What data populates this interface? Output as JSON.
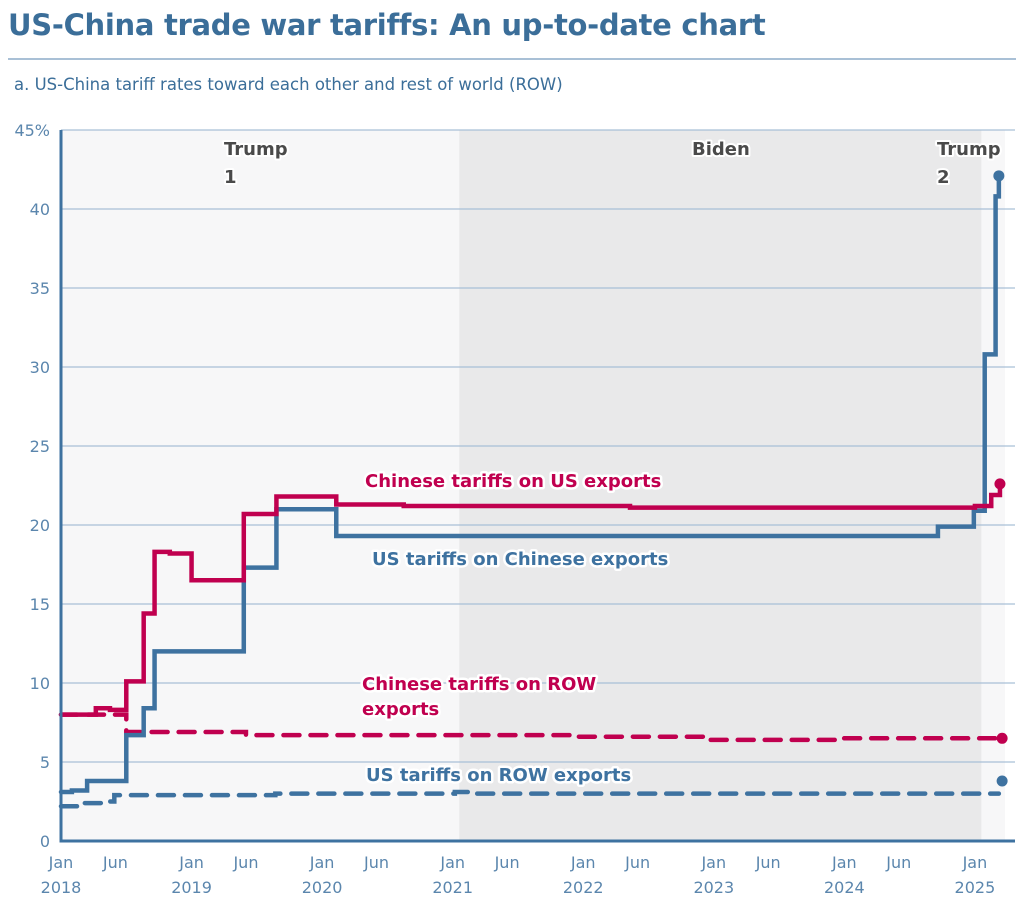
{
  "header": {
    "title": "US-China trade war tariffs: An up-to-date chart",
    "subtitle": "a. US-China tariff rates toward each other and rest of world (ROW)"
  },
  "colors": {
    "us": "#3e72a0",
    "china": "#c0004f",
    "grid": "#a9c0d6",
    "axis": "#3e72a0",
    "shade_light": "#f7f7f8",
    "shade_dark": "#e9e9ea",
    "tick": "#5b86ad",
    "era": "#4a4a4a"
  },
  "chart_data": {
    "type": "line",
    "title": "US-China trade war tariffs: An up-to-date chart",
    "subtitle": "a. US-China tariff rates toward each other and rest of world (ROW)",
    "xlabel": "",
    "ylabel": "",
    "x_unit": "months since Jan 2018",
    "xlim": [
      0,
      88
    ],
    "ylim": [
      0,
      45
    ],
    "grid": true,
    "legend": "inline labels",
    "y_ticks": [
      {
        "value": 0,
        "label": "0"
      },
      {
        "value": 5,
        "label": "5"
      },
      {
        "value": 10,
        "label": "10"
      },
      {
        "value": 15,
        "label": "15"
      },
      {
        "value": 20,
        "label": "20"
      },
      {
        "value": 25,
        "label": "25"
      },
      {
        "value": 30,
        "label": "30"
      },
      {
        "value": 35,
        "label": "35"
      },
      {
        "value": 40,
        "label": "40"
      },
      {
        "value": 45,
        "label": "45%"
      }
    ],
    "x_ticks": [
      {
        "value": 0,
        "label": "Jan",
        "year": "2018"
      },
      {
        "value": 5,
        "label": "Jun",
        "year": ""
      },
      {
        "value": 12,
        "label": "Jan",
        "year": "2019"
      },
      {
        "value": 17,
        "label": "Jun",
        "year": ""
      },
      {
        "value": 24,
        "label": "Jan",
        "year": "2020"
      },
      {
        "value": 29,
        "label": "Jun",
        "year": ""
      },
      {
        "value": 36,
        "label": "Jan",
        "year": "2021"
      },
      {
        "value": 41,
        "label": "Jun",
        "year": ""
      },
      {
        "value": 48,
        "label": "Jan",
        "year": "2022"
      },
      {
        "value": 53,
        "label": "Jun",
        "year": ""
      },
      {
        "value": 60,
        "label": "Jan",
        "year": "2023"
      },
      {
        "value": 65,
        "label": "Jun",
        "year": ""
      },
      {
        "value": 72,
        "label": "Jan",
        "year": "2024"
      },
      {
        "value": 77,
        "label": "Jun",
        "year": ""
      },
      {
        "value": 84,
        "label": "Jan",
        "year": "2025"
      }
    ],
    "eras": [
      {
        "name": "Trump 1",
        "line1": "Trump",
        "line2": "1",
        "start": 0,
        "end": 36.6,
        "shade": "light"
      },
      {
        "name": "Biden",
        "line1": "Biden",
        "line2": "",
        "start": 36.6,
        "end": 84.6,
        "shade": "dark"
      },
      {
        "name": "Trump 2",
        "line1": "Trump",
        "line2": "2",
        "start": 84.6,
        "end": 87.4,
        "shade": "light"
      }
    ],
    "series": [
      {
        "name": "US tariffs on Chinese exports",
        "label": "US tariffs on Chinese exports",
        "color_key": "us",
        "style": "solid",
        "step": true,
        "end_dot": true,
        "points": [
          [
            0,
            3.1
          ],
          [
            1,
            3.2
          ],
          [
            2.4,
            3.8
          ],
          [
            6,
            6.7
          ],
          [
            7.6,
            8.4
          ],
          [
            8.6,
            12.0
          ],
          [
            16.8,
            17.3
          ],
          [
            19.8,
            21.0
          ],
          [
            25.3,
            19.3
          ],
          [
            80.6,
            19.9
          ],
          [
            83.9,
            20.9
          ],
          [
            84.9,
            30.8
          ],
          [
            85.9,
            40.8
          ],
          [
            86.2,
            42.1
          ]
        ]
      },
      {
        "name": "Chinese tariffs on US exports",
        "label": "Chinese tariffs on US exports",
        "color_key": "china",
        "style": "solid",
        "step": true,
        "end_dot": true,
        "points": [
          [
            0,
            8.0
          ],
          [
            3.2,
            8.4
          ],
          [
            4.5,
            8.3
          ],
          [
            6,
            10.1
          ],
          [
            7.6,
            14.4
          ],
          [
            8.6,
            18.3
          ],
          [
            10,
            18.2
          ],
          [
            12,
            16.5
          ],
          [
            16.8,
            20.7
          ],
          [
            19.8,
            21.8
          ],
          [
            25.3,
            21.3
          ],
          [
            31.5,
            21.2
          ],
          [
            52.3,
            21.1
          ],
          [
            84,
            21.2
          ],
          [
            85.5,
            21.9
          ],
          [
            86.3,
            22.6
          ]
        ]
      },
      {
        "name": "Chinese tariffs on ROW exports",
        "label": "Chinese tariffs on ROW exports",
        "color_key": "china",
        "style": "dashed",
        "step": true,
        "end_dot": true,
        "points": [
          [
            0,
            8.0
          ],
          [
            6,
            6.9
          ],
          [
            17,
            6.7
          ],
          [
            47.3,
            6.6
          ],
          [
            59.7,
            6.4
          ],
          [
            71.7,
            6.5
          ],
          [
            86.5,
            6.5
          ]
        ]
      },
      {
        "name": "US tariffs on ROW exports",
        "label": "US tariffs on ROW exports",
        "color_key": "us",
        "style": "dashed",
        "step": true,
        "end_dot": false,
        "points": [
          [
            0,
            2.2
          ],
          [
            2,
            2.4
          ],
          [
            3.7,
            2.5
          ],
          [
            4.9,
            2.9
          ],
          [
            19.7,
            3.0
          ],
          [
            36.2,
            3.1
          ],
          [
            38,
            3.0
          ],
          [
            86.2,
            3.0
          ]
        ],
        "end_dot_value": [
          86.5,
          3.8
        ]
      }
    ]
  }
}
